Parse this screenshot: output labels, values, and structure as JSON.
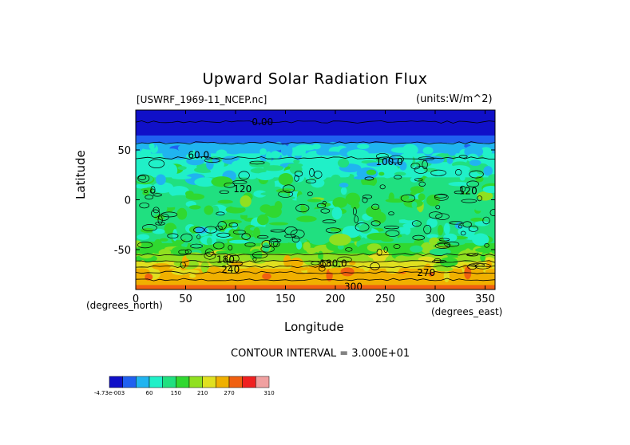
{
  "chart_data": {
    "type": "heatmap",
    "title": "Upward Solar Radiation Flux",
    "dataset_label": "[USWRF_1969-11_NCEP.nc]",
    "units_label": "(units:W/m^2)",
    "xlabel": "Longitude",
    "ylabel": "Latitude",
    "x_unit_label": "(degrees_east)",
    "y_unit_label": "(degrees_north)",
    "xlim": [
      0,
      360
    ],
    "ylim": [
      -90,
      90
    ],
    "x_ticks": [
      0,
      50,
      100,
      150,
      200,
      250,
      300,
      350
    ],
    "y_ticks": [
      -50,
      0,
      50
    ],
    "contour_interval_text": "CONTOUR INTERVAL = 3.000E+01",
    "contour_labels": [
      {
        "text": "0.00",
        "lon": 127,
        "lat": 78
      },
      {
        "text": "60.0",
        "lon": 63,
        "lat": 45
      },
      {
        "text": "100.0",
        "lon": 254,
        "lat": 38
      },
      {
        "text": "120",
        "lon": 107,
        "lat": 11
      },
      {
        "text": "120",
        "lon": 333,
        "lat": 9
      },
      {
        "text": "180",
        "lon": 90,
        "lat": -60
      },
      {
        "text": "240",
        "lon": 95,
        "lat": -70
      },
      {
        "text": "180.0",
        "lon": 198,
        "lat": -64
      },
      {
        "text": "270",
        "lon": 291,
        "lat": -73
      },
      {
        "text": "300",
        "lon": 218,
        "lat": -87
      }
    ],
    "latitude_profile": [
      {
        "lat": 90,
        "value": -0.0005
      },
      {
        "lat": 80,
        "value": 5
      },
      {
        "lat": 70,
        "value": 20
      },
      {
        "lat": 60,
        "value": 40
      },
      {
        "lat": 55,
        "value": 70
      },
      {
        "lat": 45,
        "value": 95
      },
      {
        "lat": 35,
        "value": 110
      },
      {
        "lat": 25,
        "value": 118
      },
      {
        "lat": 15,
        "value": 125
      },
      {
        "lat": 5,
        "value": 140
      },
      {
        "lat": -5,
        "value": 150
      },
      {
        "lat": -15,
        "value": 140
      },
      {
        "lat": -25,
        "value": 125
      },
      {
        "lat": -35,
        "value": 130
      },
      {
        "lat": -45,
        "value": 155
      },
      {
        "lat": -52,
        "value": 175
      },
      {
        "lat": -58,
        "value": 190
      },
      {
        "lat": -63,
        "value": 215
      },
      {
        "lat": -68,
        "value": 235
      },
      {
        "lat": -72,
        "value": 250
      },
      {
        "lat": -78,
        "value": 262
      },
      {
        "lat": -84,
        "value": 268
      },
      {
        "lat": -90,
        "value": 275
      }
    ],
    "colorbar": {
      "levels": [
        -0.000473,
        30,
        60,
        90,
        120,
        150,
        180,
        210,
        240,
        270,
        300,
        310
      ],
      "labels": [
        "-4.73e-003",
        "60",
        "150",
        "210",
        "270",
        "310"
      ],
      "colors": [
        "#1010c8",
        "#2060f0",
        "#20b4f0",
        "#20f0c8",
        "#20e080",
        "#30d830",
        "#90e020",
        "#e0e020",
        "#f0b000",
        "#f06010",
        "#f02020",
        "#f0a0a0"
      ]
    }
  }
}
